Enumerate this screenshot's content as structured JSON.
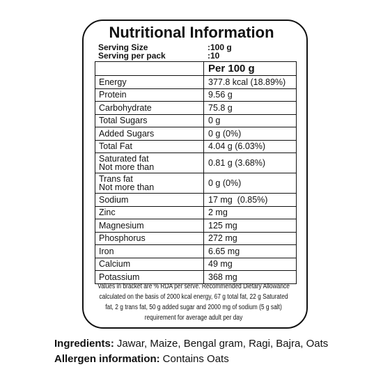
{
  "title": "Nutritional Information",
  "serving": [
    {
      "label": "Serving Size",
      "value": ":100 g"
    },
    {
      "label": "Serving per pack",
      "value": ":10"
    }
  ],
  "table": {
    "header": "Per 100 g",
    "rows": [
      [
        "Energy",
        "377.8 kcal (18.89%)"
      ],
      [
        "Protein",
        "9.56 g"
      ],
      [
        "Carbohydrate",
        "75.8 g"
      ],
      [
        "Total Sugars",
        "0 g"
      ],
      [
        "Added Sugars",
        "0 g (0%)"
      ],
      [
        "Total Fat",
        "4.04 g (6.03%)"
      ],
      [
        "Saturated fat\nNot more than",
        "0.81 g (3.68%)"
      ],
      [
        "Trans fat\nNot more than",
        "0 g (0%)"
      ],
      [
        "Sodium",
        "17 mg  (0.85%)"
      ],
      [
        "Zinc",
        "2 mg"
      ],
      [
        "Magnesium",
        "125 mg"
      ],
      [
        "Phosphorus",
        "272 mg"
      ],
      [
        "Iron",
        "6.65 mg"
      ],
      [
        "Calcium",
        "49 mg"
      ],
      [
        "Potassium",
        "368 mg"
      ]
    ]
  },
  "footnote": [
    "Values in bracket are % RDA per serve. Recommended Dietary Allowance",
    "calculated on the basis of 2000 kcal energy, 67 g total fat, 22 g Saturated",
    "fat, 2 g trans fat, 50 g added sugar and 2000 mg of sodium (5 g salt)",
    "requirement for average adult per day"
  ],
  "ingredients": {
    "label": "Ingredients:",
    "text": "Jawar, Maize, Bengal gram, Ragi, Bajra, Oats"
  },
  "allergen": {
    "label": "Allergen information:",
    "text": "Contains Oats"
  }
}
